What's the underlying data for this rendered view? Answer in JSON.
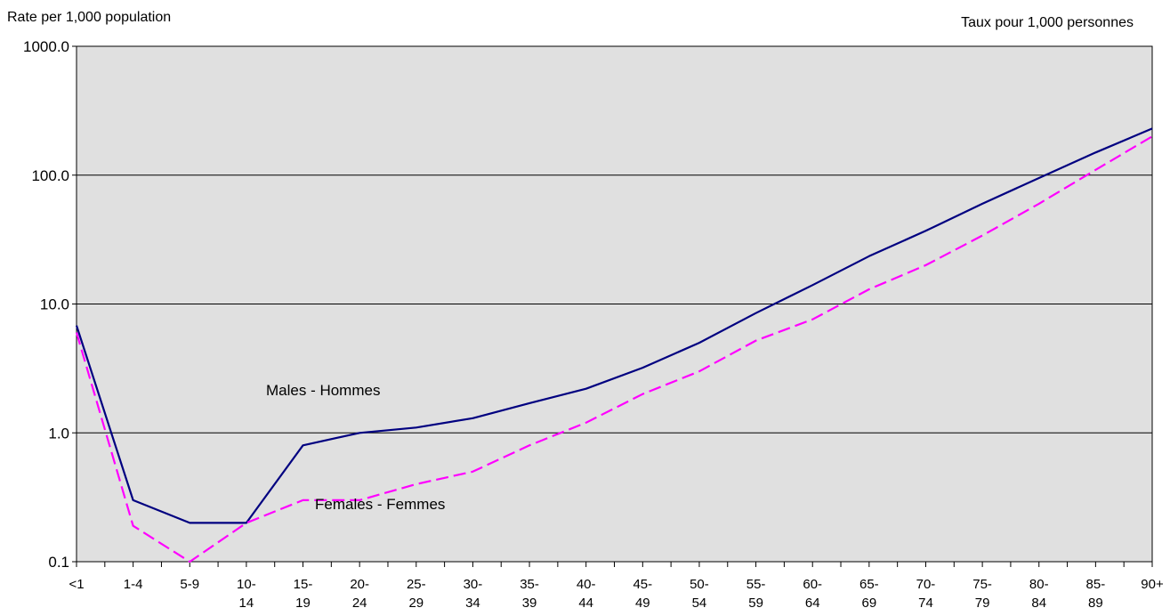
{
  "chart_data": {
    "type": "line",
    "ylabel_left": "Rate per 1,000 population",
    "ylabel_right": "Taux pour 1,000 personnes",
    "y_scale": "log",
    "ylim": [
      0.1,
      1000
    ],
    "yticks": [
      "1000.0",
      "100.0",
      "10.0",
      "1.0",
      "0.1"
    ],
    "grid": true,
    "categories": [
      [
        "<1"
      ],
      [
        "1-4"
      ],
      [
        "5-9"
      ],
      [
        "10-",
        "14"
      ],
      [
        "15-",
        "19"
      ],
      [
        "20-",
        "24"
      ],
      [
        "25-",
        "29"
      ],
      [
        "30-",
        "34"
      ],
      [
        "35-",
        "39"
      ],
      [
        "40-",
        "44"
      ],
      [
        "45-",
        "49"
      ],
      [
        "50-",
        "54"
      ],
      [
        "55-",
        "59"
      ],
      [
        "60-",
        "64"
      ],
      [
        "65-",
        "69"
      ],
      [
        "70-",
        "74"
      ],
      [
        "75-",
        "79"
      ],
      [
        "80-",
        "84"
      ],
      [
        "85-",
        "89"
      ],
      [
        "90+"
      ]
    ],
    "series": [
      {
        "name": "Males - Hommes",
        "color": "#000080",
        "style": "solid",
        "values": [
          6.8,
          0.3,
          0.2,
          0.2,
          0.8,
          1.0,
          1.1,
          1.3,
          1.7,
          2.2,
          3.2,
          5.0,
          8.5,
          14.0,
          23.5,
          37.0,
          60.0,
          95.0,
          150.0,
          230.0
        ]
      },
      {
        "name": "Females - Femmes",
        "color": "#ff00ff",
        "style": "dashed",
        "values": [
          6.0,
          0.19,
          0.1,
          0.2,
          0.3,
          0.3,
          0.4,
          0.5,
          0.8,
          1.2,
          2.0,
          3.0,
          5.2,
          7.6,
          13.0,
          20.0,
          34.0,
          60.0,
          110.0,
          200.0
        ]
      }
    ]
  }
}
